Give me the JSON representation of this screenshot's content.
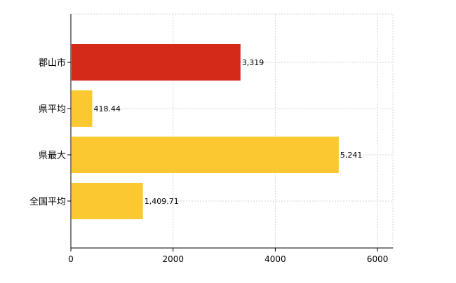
{
  "chart_data": {
    "type": "bar",
    "orientation": "horizontal",
    "categories": [
      "郡山市",
      "県平均",
      "県最大",
      "全国平均"
    ],
    "values": [
      3319,
      418.44,
      5241,
      1409.71
    ],
    "value_labels": [
      "3,319",
      "418.44",
      "5,241",
      "1,409.71"
    ],
    "bar_colors": [
      "#d42a1a",
      "#fcc832",
      "#fcc832",
      "#fcc832"
    ],
    "xlim": [
      0,
      6300
    ],
    "x_ticks": [
      0,
      2000,
      4000,
      6000
    ],
    "x_tick_labels": [
      "0",
      "2000",
      "4000",
      "6000"
    ],
    "grid": true,
    "title": "",
    "xlabel": "",
    "ylabel": ""
  }
}
